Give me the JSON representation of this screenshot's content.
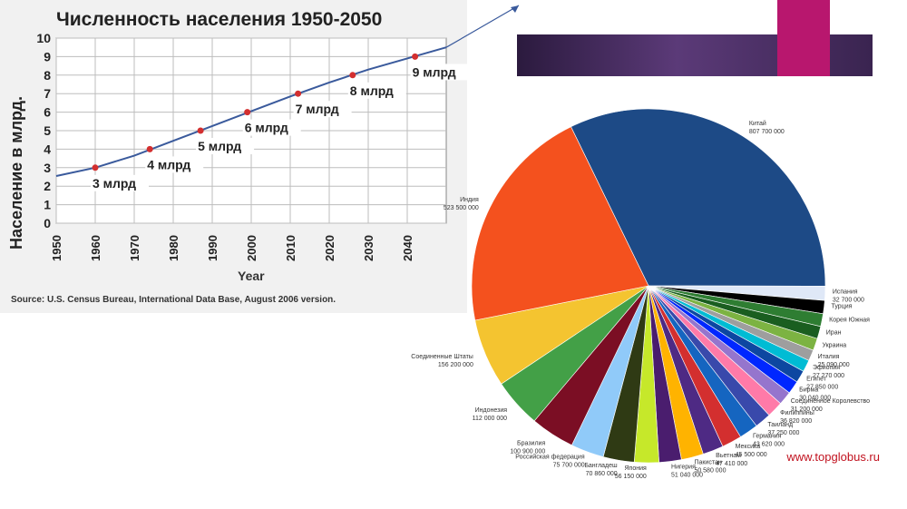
{
  "watermark": "www.topglobus.ru",
  "chart_data": [
    {
      "type": "line",
      "title": "Численность населения 1950-2050",
      "xlabel": "Year",
      "ylabel": "Население в млрд.",
      "source": "Source: U.S. Census Bureau, International Data Base, August 2006 version.",
      "xlim": [
        1950,
        2050
      ],
      "ylim": [
        0,
        10
      ],
      "x_ticks": [
        1950,
        1960,
        1970,
        1980,
        1990,
        2000,
        2010,
        2020,
        2030,
        2040
      ],
      "y_ticks": [
        0,
        1,
        2,
        3,
        4,
        5,
        6,
        7,
        8,
        9,
        10
      ],
      "grid": true,
      "series": [
        {
          "x": [
            1950,
            1960,
            1970,
            1980,
            1990,
            2000,
            2010,
            2020,
            2030,
            2040,
            2050
          ],
          "y": [
            2.55,
            3.0,
            3.65,
            4.45,
            5.25,
            6.05,
            6.85,
            7.6,
            8.3,
            8.9,
            9.5
          ],
          "color": "#3a5a9c"
        }
      ],
      "milestones": [
        {
          "x": 1960,
          "y": 3,
          "label": "3 млрд"
        },
        {
          "x": 1974,
          "y": 4,
          "label": "4 млрд"
        },
        {
          "x": 1987,
          "y": 5,
          "label": "5 млрд"
        },
        {
          "x": 1999,
          "y": 6,
          "label": "6 млрд"
        },
        {
          "x": 2012,
          "y": 7,
          "label": "7 млрд"
        },
        {
          "x": 2026,
          "y": 8,
          "label": "8 млрд"
        },
        {
          "x": 2042,
          "y": 9,
          "label": "9 млрд"
        }
      ]
    },
    {
      "type": "pie",
      "slices": [
        {
          "label": "Китай",
          "value": 807700000,
          "value_text": "807 700 000",
          "color": "#1d4a86"
        },
        {
          "label": "Испания",
          "value": 32700000,
          "value_text": "32 700 000",
          "color": "#dfe8f7"
        },
        {
          "label": "Турция",
          "value": 30000000,
          "value_text": "",
          "color": "#000000"
        },
        {
          "label": "Корея Южная",
          "value": 29200000,
          "value_text": "",
          "color": "#2e7d32"
        },
        {
          "label": "Иран",
          "value": 28500000,
          "value_text": "",
          "color": "#1a5e20"
        },
        {
          "label": "Украина",
          "value": 27800000,
          "value_text": "",
          "color": "#7cb342"
        },
        {
          "label": "Италия",
          "value": 25090000,
          "value_text": "25 090 000",
          "color": "#9e9e9e"
        },
        {
          "label": "Эфиопия",
          "value": 27270000,
          "value_text": "27 270 000",
          "color": "#00bcd4"
        },
        {
          "label": "Египет",
          "value": 27850000,
          "value_text": "27 850 000",
          "color": "#0d47a1"
        },
        {
          "label": "Бирма",
          "value": 30040000,
          "value_text": "30 040 000",
          "color": "#0027ff"
        },
        {
          "label": "Соединённое Королевство",
          "value": 31200000,
          "value_text": "31 200 000",
          "color": "#9575cd"
        },
        {
          "label": "Филиппины",
          "value": 36820000,
          "value_text": "36 820 000",
          "color": "#ff7aa8"
        },
        {
          "label": "Таиланд",
          "value": 37250000,
          "value_text": "37 250 000",
          "color": "#3949ab"
        },
        {
          "label": "Германия",
          "value": 43620000,
          "value_text": "43 620 000",
          "color": "#1565c0"
        },
        {
          "label": "Мексика",
          "value": 45500000,
          "value_text": "45 500 000",
          "color": "#d32f2f"
        },
        {
          "label": "Вьетнам",
          "value": 47410000,
          "value_text": "47 410 000",
          "color": "#4e2a84"
        },
        {
          "label": "Пакистан",
          "value": 50580000,
          "value_text": "50 580 000",
          "color": "#ffb300"
        },
        {
          "label": "Нигерия",
          "value": 51040000,
          "value_text": "51 040 000",
          "color": "#4a1d6e"
        },
        {
          "label": "Япония",
          "value": 56150000,
          "value_text": "56 150 000",
          "color": "#c6e82a"
        },
        {
          "label": "Бангладеш",
          "value": 70860000,
          "value_text": "70 860 000",
          "color": "#2f3a14"
        },
        {
          "label": "Российская федерация",
          "value": 75700000,
          "value_text": "75 700 000",
          "color": "#90caf9"
        },
        {
          "label": "Бразилия",
          "value": 100900000,
          "value_text": "100 900 000",
          "color": "#7b0e24"
        },
        {
          "label": "Индонезия",
          "value": 112000000,
          "value_text": "112 000 000",
          "color": "#43a047"
        },
        {
          "label": "Соединенные Штаты",
          "value": 156200000,
          "value_text": "156 200 000",
          "color": "#f4c430"
        },
        {
          "label": "Индия",
          "value": 523500000,
          "value_text": "523 500 000",
          "color": "#f4511e"
        }
      ],
      "start_angle_deg": -116
    }
  ]
}
